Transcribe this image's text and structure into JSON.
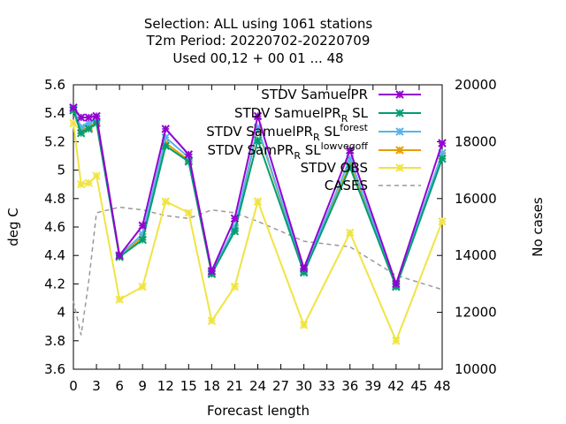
{
  "chart_data": {
    "type": "line",
    "title_lines": [
      "Selection: ALL using  1061 stations",
      "T2m   Period: 20220702-20220709",
      "Used  00,12  + 00 01 ... 48"
    ],
    "xlabel": "Forecast length",
    "ylabel": "deg C",
    "y2label": "No cases",
    "xlim": [
      0,
      48
    ],
    "ylim": [
      3.6,
      5.6
    ],
    "y2lim": [
      10000,
      20000
    ],
    "xticks": [
      0,
      3,
      6,
      9,
      12,
      15,
      18,
      21,
      24,
      27,
      30,
      33,
      36,
      39,
      42,
      45,
      48
    ],
    "yticks": [
      3.6,
      3.8,
      4.0,
      4.2,
      4.4,
      4.6,
      4.8,
      5.0,
      5.2,
      5.4,
      5.6
    ],
    "ytick_labels": [
      "3.6",
      "3.8",
      "4",
      "4.2",
      "4.4",
      "4.6",
      "4.8",
      "5",
      "5.2",
      "5.4",
      "5.6"
    ],
    "y2ticks": [
      10000,
      12000,
      14000,
      16000,
      18000,
      20000
    ],
    "y2tick_labels": [
      "10000",
      "12000",
      "14000",
      "16000",
      "18000",
      "20000"
    ],
    "grid": false,
    "legend_position": "top-right",
    "x": [
      0,
      1,
      2,
      3,
      6,
      9,
      12,
      15,
      18,
      21,
      24,
      30,
      36,
      42,
      48
    ],
    "series": [
      {
        "name": "STDV SamuelPR",
        "color": "#9400d3",
        "axis": "left",
        "values": [
          5.44,
          5.37,
          5.37,
          5.38,
          4.4,
          4.61,
          5.29,
          5.11,
          4.29,
          4.66,
          5.38,
          4.31,
          5.14,
          4.2,
          5.19
        ]
      },
      {
        "name": "STDV SamuelPR_R SL",
        "color": "#009e73",
        "axis": "left",
        "values": [
          5.42,
          5.26,
          5.29,
          5.33,
          4.39,
          4.51,
          5.17,
          5.06,
          4.27,
          4.57,
          5.21,
          4.28,
          5.02,
          4.18,
          5.08
        ]
      },
      {
        "name": "STDV SamuelPR_R SL_forest",
        "color": "#56b4e9",
        "axis": "left",
        "values": [
          5.43,
          5.3,
          5.33,
          5.36,
          4.4,
          4.55,
          5.23,
          5.09,
          4.28,
          4.6,
          5.3,
          4.29,
          5.08,
          4.19,
          5.12
        ]
      },
      {
        "name": "STDV SamPR_R SL_lowvegoff",
        "color": "#e69f00",
        "axis": "left",
        "values": [
          5.42,
          5.28,
          5.3,
          5.34,
          4.39,
          4.53,
          5.19,
          5.07,
          4.27,
          4.59,
          5.29,
          4.28,
          5.04,
          4.18,
          5.1
        ]
      },
      {
        "name": "STDV OBS",
        "color": "#f0e442",
        "axis": "left",
        "values": [
          5.33,
          4.9,
          4.91,
          4.96,
          4.09,
          4.18,
          4.78,
          4.7,
          3.94,
          4.18,
          4.78,
          3.91,
          4.56,
          3.8,
          4.64
        ]
      },
      {
        "name": "CASES",
        "color": "#999999",
        "axis": "right",
        "dashed": true,
        "x": [
          0,
          1,
          2,
          3,
          6,
          9,
          12,
          15,
          18,
          21,
          24,
          30,
          36,
          42,
          48
        ],
        "values": [
          12400,
          11200,
          13100,
          15500,
          15700,
          15600,
          15400,
          15300,
          15600,
          15500,
          15200,
          14500,
          14300,
          13300,
          12800
        ]
      }
    ]
  }
}
